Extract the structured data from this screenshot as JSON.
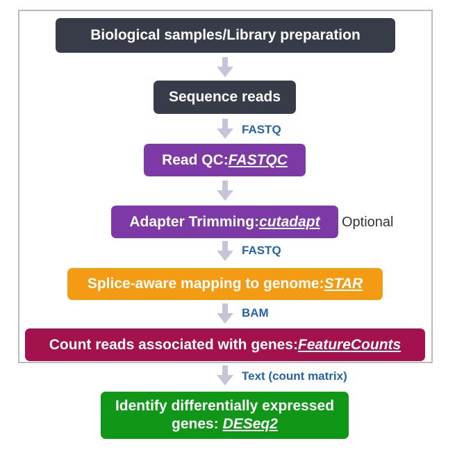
{
  "steps": [
    {
      "text": "Biological samples/Library preparation",
      "tool": ""
    },
    {
      "text": "Sequence reads",
      "tool": ""
    },
    {
      "text": "Read QC: ",
      "tool": "FASTQC"
    },
    {
      "text": "Adapter Trimming: ",
      "tool": "cutadapt"
    },
    {
      "text": "Splice-aware mapping to genome: ",
      "tool": "STAR"
    },
    {
      "text": "Count reads associated with genes: ",
      "tool": "FeatureCounts"
    },
    {
      "line1": "Identify differentially expressed",
      "text": "genes: ",
      "tool": "DESeq2"
    }
  ],
  "optional_label": "Optional",
  "edge_labels": [
    "FASTQ",
    "FASTQ",
    "BAM",
    "Text (count matrix)"
  ],
  "colors": {
    "dark": "#373c48",
    "purple": "#7d3aa6",
    "orange": "#f39b12",
    "maroon": "#a3124d",
    "green": "#109717",
    "edge_label": "#2463a8",
    "arrow": "#c4c5d6"
  }
}
